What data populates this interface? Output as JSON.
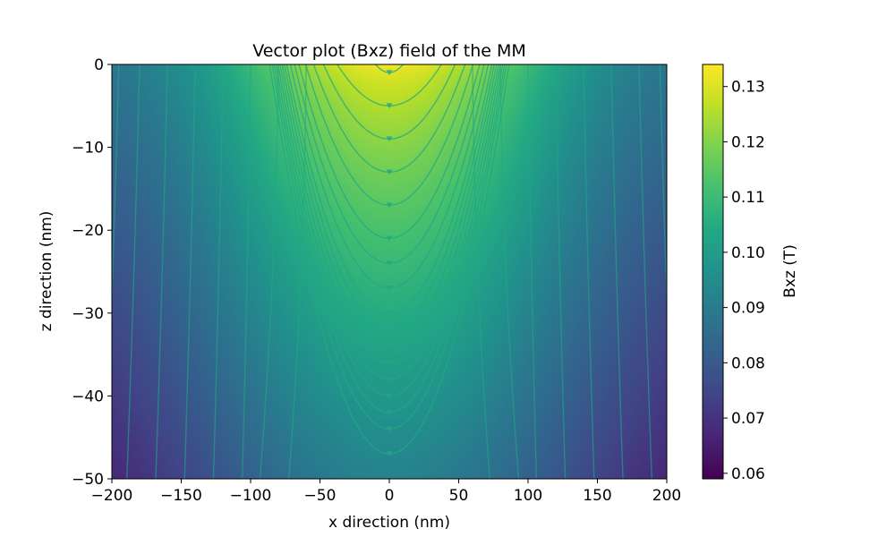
{
  "chart_data": {
    "type": "heatmap",
    "title": "Vector plot (Bxz) field of the MM",
    "xlabel": "x direction (nm)",
    "ylabel": "z direction (nm)",
    "xlim": [
      -200,
      200
    ],
    "ylim": [
      -50,
      0
    ],
    "x_ticks": [
      -200,
      -150,
      -100,
      -50,
      0,
      50,
      100,
      150,
      200
    ],
    "x_tick_labels": [
      "−200",
      "−150",
      "−100",
      "−50",
      "0",
      "50",
      "100",
      "150",
      "200"
    ],
    "y_ticks": [
      0,
      -10,
      -20,
      -30,
      -40,
      -50
    ],
    "y_tick_labels": [
      "0",
      "−10",
      "−20",
      "−30",
      "−40",
      "−50"
    ],
    "colormap": "viridis",
    "colorbar": {
      "label": "Bxz (T)",
      "range": [
        0.059,
        0.134
      ],
      "ticks": [
        0.06,
        0.07,
        0.08,
        0.09,
        0.1,
        0.11,
        0.12,
        0.13
      ],
      "tick_labels": [
        "0.06",
        "0.07",
        "0.08",
        "0.09",
        "0.10",
        "0.11",
        "0.12",
        "0.13"
      ]
    },
    "field_samples": [
      {
        "x": 0,
        "z": 0,
        "value": 0.134
      },
      {
        "x": 0,
        "z": -10,
        "value": 0.122
      },
      {
        "x": 0,
        "z": -20,
        "value": 0.11
      },
      {
        "x": 0,
        "z": -30,
        "value": 0.101
      },
      {
        "x": 0,
        "z": -50,
        "value": 0.092
      },
      {
        "x": -100,
        "z": 0,
        "value": 0.105
      },
      {
        "x": -100,
        "z": -25,
        "value": 0.09
      },
      {
        "x": -100,
        "z": -50,
        "value": 0.08
      },
      {
        "x": -200,
        "z": 0,
        "value": 0.082
      },
      {
        "x": -200,
        "z": -25,
        "value": 0.068
      },
      {
        "x": -200,
        "z": -50,
        "value": 0.06
      },
      {
        "x": 200,
        "z": -50,
        "value": 0.06
      }
    ],
    "streamlines": true,
    "streamline_color": "#22a884",
    "grid": false
  }
}
